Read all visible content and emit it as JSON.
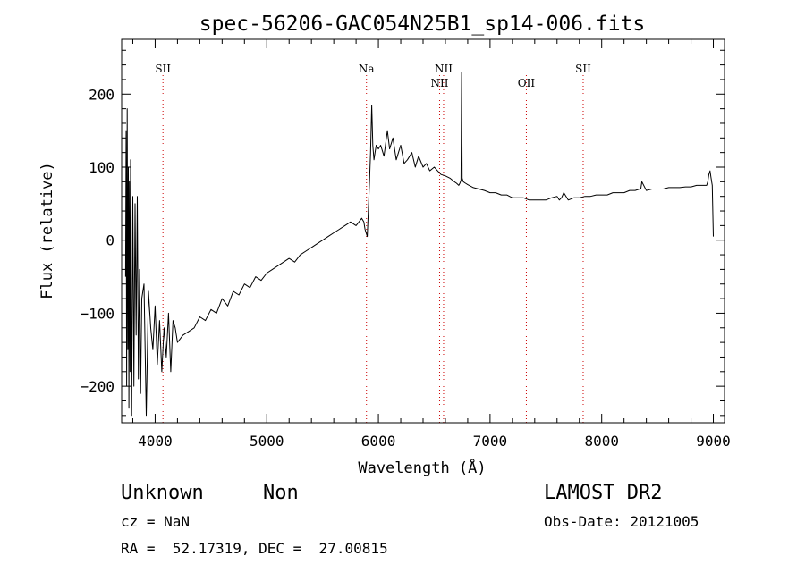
{
  "chart_data": {
    "type": "line",
    "title": "spec-56206-GAC054N25B1_sp14-006.fits",
    "xlabel": "Wavelength (Å)",
    "ylabel": "Flux (relative)",
    "xlim": [
      3700,
      9100
    ],
    "ylim": [
      -250,
      275
    ],
    "xticks": [
      4000,
      5000,
      6000,
      7000,
      8000,
      9000
    ],
    "yticks": [
      -200,
      -100,
      0,
      100,
      200
    ],
    "grid": false,
    "line_color": "#000000",
    "marker_color": "#cc0000",
    "lines": [
      {
        "name": "SII",
        "wavelength": 4070,
        "row": "upper"
      },
      {
        "name": "Na",
        "wavelength": 5893,
        "row": "upper"
      },
      {
        "name": "NII",
        "wavelength": 6548,
        "row": "lower"
      },
      {
        "name": "NII",
        "wavelength": 6584,
        "row": "upper"
      },
      {
        "name": "OII",
        "wavelength": 7325,
        "row": "lower"
      },
      {
        "name": "SII",
        "wavelength": 7834,
        "row": "upper"
      }
    ],
    "series": [
      {
        "x": [
          3735,
          3740,
          3745,
          3750,
          3755,
          3760,
          3765,
          3770,
          3775,
          3780,
          3790,
          3800,
          3810,
          3820,
          3830,
          3840,
          3850,
          3860,
          3870,
          3880,
          3900,
          3920,
          3940,
          3960,
          3980,
          4000,
          4020,
          4040,
          4060,
          4080,
          4100,
          4120,
          4140,
          4160,
          4180,
          4200,
          4250,
          4300,
          4350,
          4400,
          4450,
          4500,
          4550,
          4600,
          4650,
          4700,
          4750,
          4800,
          4850,
          4900,
          4950,
          5000,
          5050,
          5100,
          5150,
          5200,
          5250,
          5300,
          5350,
          5400,
          5450,
          5500,
          5550,
          5600,
          5650,
          5700,
          5750,
          5800,
          5850,
          5870,
          5880,
          5890,
          5900,
          5910,
          5920,
          5930,
          5940,
          5950,
          5960,
          5970,
          5980,
          6000,
          6020,
          6050,
          6080,
          6100,
          6130,
          6160,
          6200,
          6230,
          6260,
          6300,
          6330,
          6360,
          6400,
          6430,
          6460,
          6500,
          6530,
          6560,
          6600,
          6640,
          6680,
          6700,
          6720,
          6730,
          6740,
          6745,
          6750,
          6760,
          6780,
          6800,
          6850,
          6900,
          6950,
          7000,
          7050,
          7100,
          7150,
          7200,
          7250,
          7300,
          7350,
          7400,
          7450,
          7500,
          7550,
          7600,
          7620,
          7640,
          7660,
          7700,
          7750,
          7800,
          7850,
          7900,
          7950,
          8000,
          8050,
          8100,
          8150,
          8200,
          8250,
          8300,
          8340,
          8350,
          8360,
          8400,
          8450,
          8500,
          8550,
          8600,
          8650,
          8700,
          8750,
          8800,
          8850,
          8900,
          8940,
          8950,
          8960,
          8970,
          8980,
          8990,
          9000
        ],
        "y": [
          -50,
          150,
          -200,
          180,
          -150,
          100,
          -230,
          80,
          -180,
          110,
          -240,
          60,
          -200,
          50,
          -130,
          60,
          -190,
          -40,
          -210,
          -80,
          -60,
          -240,
          -70,
          -120,
          -150,
          -90,
          -170,
          -110,
          -180,
          -120,
          -160,
          -100,
          -180,
          -110,
          -120,
          -140,
          -130,
          -125,
          -120,
          -105,
          -110,
          -95,
          -100,
          -80,
          -90,
          -70,
          -75,
          -60,
          -65,
          -50,
          -55,
          -45,
          -40,
          -35,
          -30,
          -25,
          -30,
          -20,
          -15,
          -10,
          -5,
          0,
          5,
          10,
          15,
          20,
          25,
          20,
          30,
          25,
          15,
          10,
          5,
          40,
          80,
          120,
          185,
          130,
          110,
          120,
          130,
          125,
          130,
          115,
          150,
          125,
          140,
          110,
          130,
          105,
          110,
          120,
          100,
          115,
          100,
          105,
          95,
          100,
          95,
          90,
          88,
          85,
          80,
          78,
          75,
          78,
          82,
          230,
          85,
          80,
          78,
          76,
          72,
          70,
          68,
          65,
          65,
          62,
          62,
          58,
          58,
          58,
          55,
          55,
          55,
          55,
          58,
          60,
          55,
          58,
          65,
          55,
          58,
          58,
          60,
          60,
          62,
          62,
          62,
          65,
          65,
          65,
          68,
          68,
          70,
          70,
          80,
          68,
          70,
          70,
          70,
          72,
          72,
          72,
          73,
          73,
          75,
          75,
          75,
          80,
          90,
          95,
          85,
          75,
          5
        ]
      }
    ]
  },
  "info": {
    "class": "Unknown",
    "subclass": "Non",
    "survey": "LAMOST DR2",
    "cz": "cz = NaN",
    "obs_date": "Obs-Date: 20121005",
    "radec": "RA =  52.17319, DEC =  27.00815"
  }
}
